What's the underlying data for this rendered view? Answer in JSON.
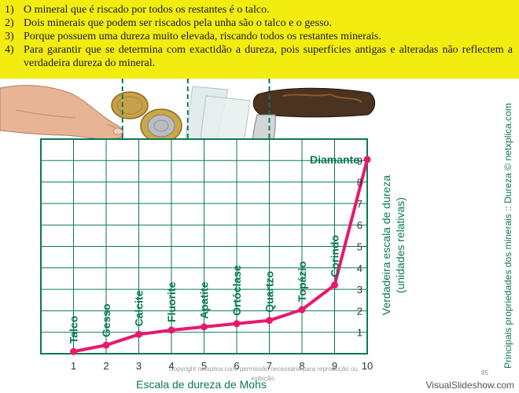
{
  "answers": [
    {
      "num": "1)",
      "text": "O mineral que é riscado por todos os restantes é o talco."
    },
    {
      "num": "2)",
      "text": "Dois minerais que podem ser riscados pela unha são o talco e o gesso."
    },
    {
      "num": "3)",
      "text": "Porque possuem uma dureza muito elevada, riscando todos os restantes minerais."
    },
    {
      "num": "4)",
      "text": "Para garantir que se determina com exactidão a dureza, pois superfícies antigas e alteradas não reflectem a verdadeira dureza do mineral."
    }
  ],
  "side_title": "Principais propriedades dos minerais :: Dureza © netxplica.com",
  "copyright": "Copyright netxplica.com: permissão necessária para reprodução ou exibição.",
  "page_number": "85",
  "brand": "VisualSlideshow.com",
  "colors": {
    "banner": "#f2ec10",
    "accent": "#0a7a52",
    "line": "#e8196c"
  },
  "illustrations": [
    "hand-fingernail",
    "copper-coin",
    "euro-coin",
    "glass-plates",
    "pocket-knife"
  ],
  "chart_data": {
    "type": "line",
    "xlabel": "Escala de dureza de Mohs",
    "ylabel": [
      "Verdadeira escala de dureza",
      "(unidades relativas)"
    ],
    "x": [
      1,
      2,
      3,
      4,
      5,
      6,
      7,
      8,
      9,
      10
    ],
    "y": [
      0.1,
      0.4,
      0.9,
      1.1,
      1.25,
      1.4,
      1.55,
      2.05,
      3.2,
      9.05
    ],
    "labels": [
      "Talco",
      "Gesso",
      "Calcite",
      "Fluorite",
      "Apatite",
      "Ortóclase",
      "Quartzo",
      "Topázio",
      "Corindo",
      "Diamante"
    ],
    "xticks": [
      "1",
      "2",
      "3",
      "4",
      "5",
      "6",
      "7",
      "8",
      "9",
      "10"
    ],
    "yticks": [
      "1",
      "2",
      "3",
      "4",
      "5",
      "6",
      "7",
      "8",
      "9"
    ],
    "xlim": [
      0,
      10
    ],
    "ylim": [
      0,
      10
    ],
    "grid": true,
    "reference_marks_x": [
      2.5,
      4.5,
      7
    ]
  }
}
